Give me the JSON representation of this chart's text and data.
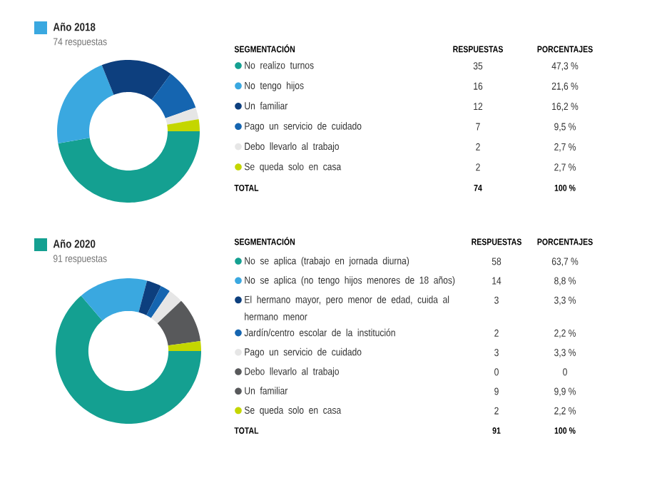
{
  "chart_data": [
    {
      "type": "donut",
      "title": "Año 2018",
      "subtitle": "74 respuestas",
      "categories": [
        "No realizo turnos",
        "No tengo hijos",
        "Un familiar",
        "Pago un servicio de cuidado",
        "Debo llevarlo al trabajo",
        "Se queda solo en casa"
      ],
      "values": [
        35,
        16,
        12,
        7,
        2,
        2
      ],
      "colors": [
        "#14a091",
        "#3aa8e0",
        "#0d3f7e",
        "#1565b0",
        "#e6e6e6",
        "#c4d600"
      ],
      "value_labels": [
        "35",
        "16",
        "12",
        "7",
        "2",
        "2"
      ],
      "annotations": [
        "SEGMENTACIÓN",
        "RESPUESTAS",
        "PORCENTAJES",
        "TOTAL",
        "74",
        "100 %",
        "47,3 %",
        "21,6 %",
        "16,2 %",
        "9,5 %",
        "2,7 %",
        "2,7 %"
      ],
      "legend": "right"
    },
    {
      "type": "donut",
      "title": "Año 2020",
      "subtitle": "91 respuestas",
      "categories": [
        "No se aplica (trabajo en jornada diurna)",
        "No se aplica (no tengo hijos menores de 18 años)",
        "El hermano mayor, pero menor de edad, cuida al hermano menor",
        "Jardín/centro escolar de la institución",
        "Pago un servicio de cuidado",
        "Debo llevarlo al trabajo",
        "Un familiar",
        "Se queda solo en casa"
      ],
      "values": [
        58,
        14,
        3,
        2,
        3,
        0,
        9,
        2
      ],
      "colors": [
        "#14a091",
        "#3aa8e0",
        "#0d3f7e",
        "#1565b0",
        "#e6e6e6",
        "#58595b",
        "#58595b",
        "#c4d600"
      ],
      "value_labels": [
        "58",
        "14",
        "3",
        "2",
        "3",
        "0",
        "9",
        "2"
      ],
      "annotations": [
        "SEGMENTACIÓN",
        "RESPUESTAS",
        "PORCENTAJES",
        "TOTAL",
        "91",
        "100 %",
        "63,7 %",
        "8,8 %",
        "3,3 %",
        "2,2 %",
        "3,3 %",
        "0",
        "9,9 %",
        "2,2 %"
      ],
      "legend": "right"
    }
  ]
}
